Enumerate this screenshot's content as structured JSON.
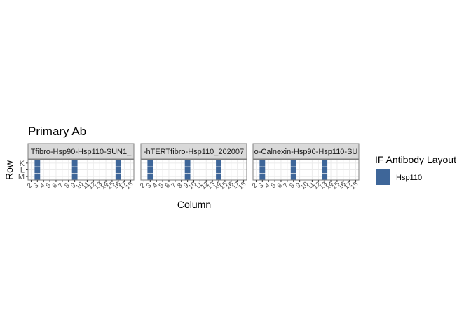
{
  "title": "Primary Ab",
  "xlabel": "Column",
  "ylabel": "Row",
  "legend": {
    "title": "IF Antibody Layout",
    "items": [
      {
        "label": "Hsp110",
        "color": "#3E6699"
      }
    ]
  },
  "colors": {
    "grid": "#ebebeb",
    "strip_fill": "#d9d9d9",
    "strip_border": "#7f7f7f",
    "panel_border": "#7f7f7f"
  },
  "chart_data": {
    "type": "heatmap",
    "facet_by": "plate",
    "rows": [
      "K",
      "L",
      "M"
    ],
    "columns": [
      2,
      3,
      4,
      5,
      6,
      7,
      8,
      9,
      10,
      11,
      12,
      13,
      14,
      15,
      16,
      17,
      18
    ],
    "grid": true,
    "legend_position": "right",
    "facets": [
      {
        "strip_label": "Tfibro-Hsp90-Hsp110-SUN1_",
        "x_ticks": [
          "2",
          "3",
          "4",
          "5",
          "6",
          "7",
          "8",
          "9",
          "10",
          "11",
          "12",
          "13",
          "14",
          "15",
          "16",
          "17",
          "18"
        ],
        "filled": [
          {
            "column": 3,
            "rows": [
              "K",
              "L",
              "M"
            ],
            "value": "Hsp110"
          },
          {
            "column": 9,
            "rows": [
              "K",
              "L",
              "M"
            ],
            "value": "Hsp110"
          },
          {
            "column": 16,
            "rows": [
              "K",
              "L",
              "M"
            ],
            "value": "Hsp110"
          }
        ]
      },
      {
        "strip_label": "-hTERTfibro-Hsp110_202007",
        "x_ticks": [
          "2",
          "3",
          "4",
          "5",
          "6",
          "7",
          "8",
          "9",
          "10",
          "11",
          "12",
          "13",
          "14",
          "15",
          "16",
          "17",
          "18"
        ],
        "filled": [
          {
            "column": 3,
            "rows": [
              "K",
              "L",
              "M"
            ],
            "value": "Hsp110"
          },
          {
            "column": 9,
            "rows": [
              "K",
              "L",
              "M"
            ],
            "value": "Hsp110"
          },
          {
            "column": 14,
            "rows": [
              "K",
              "L",
              "M"
            ],
            "value": "Hsp110"
          }
        ]
      },
      {
        "strip_label": "o-Calnexin-Hsp90-Hsp110-SU",
        "x_ticks": [
          "2",
          "3",
          "4",
          "5",
          "6",
          "7",
          "8",
          "9",
          "10",
          "11",
          "12",
          "13",
          "14",
          "15",
          "16",
          "17",
          "18"
        ],
        "filled": [
          {
            "column": 3,
            "rows": [
              "K",
              "L",
              "M"
            ],
            "value": "Hsp110"
          },
          {
            "column": 8,
            "rows": [
              "K",
              "L",
              "M"
            ],
            "value": "Hsp110"
          },
          {
            "column": 13,
            "rows": [
              "K",
              "L",
              "M"
            ],
            "value": "Hsp110"
          }
        ]
      }
    ]
  }
}
